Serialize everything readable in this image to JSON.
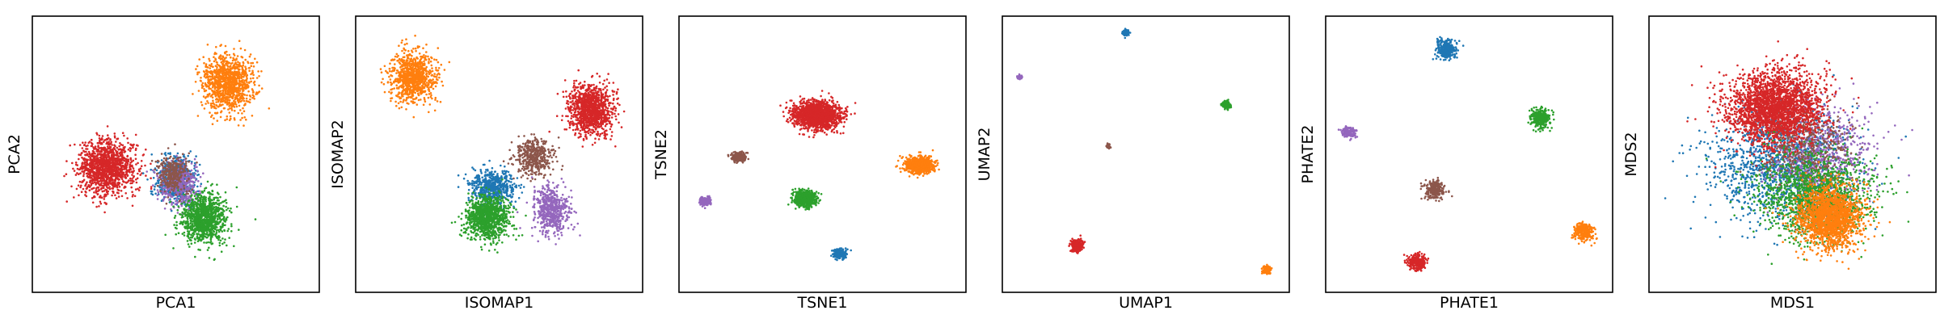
{
  "figure": {
    "colors": {
      "c0": "#1f77b4",
      "c1": "#ff7f0e",
      "c2": "#2ca02c",
      "c3": "#d62728",
      "c4": "#9467bd",
      "c5": "#8c564b"
    }
  },
  "chart_data": [
    {
      "type": "scatter",
      "xlabel": "PCA1",
      "ylabel": "PCA2",
      "xlim": [
        0,
        100
      ],
      "ylim": [
        0,
        100
      ],
      "grid": false,
      "legend": "none",
      "clusters": [
        {
          "color": "c3",
          "cx": 26,
          "cy": 45,
          "sx": 9,
          "sy": 9,
          "n": 1300
        },
        {
          "color": "c1",
          "cx": 68,
          "cy": 76,
          "sx": 8,
          "sy": 9,
          "n": 1100
        },
        {
          "color": "c0",
          "cx": 50,
          "cy": 41,
          "sx": 6,
          "sy": 7,
          "n": 600
        },
        {
          "color": "c4",
          "cx": 51,
          "cy": 39,
          "sx": 6,
          "sy": 7,
          "n": 450
        },
        {
          "color": "c5",
          "cx": 49,
          "cy": 43,
          "sx": 5,
          "sy": 6,
          "n": 300
        },
        {
          "color": "c2",
          "cx": 60,
          "cy": 27,
          "sx": 7,
          "sy": 8,
          "n": 1100
        }
      ]
    },
    {
      "type": "scatter",
      "xlabel": "ISOMAP1",
      "ylabel": "ISOMAP2",
      "xlim": [
        0,
        100
      ],
      "ylim": [
        0,
        100
      ],
      "grid": false,
      "legend": "none",
      "clusters": [
        {
          "color": "c1",
          "cx": 20,
          "cy": 78,
          "sx": 7,
          "sy": 8,
          "n": 900
        },
        {
          "color": "c3",
          "cx": 82,
          "cy": 66,
          "sx": 7,
          "sy": 8,
          "n": 1100
        },
        {
          "color": "c5",
          "cx": 62,
          "cy": 49,
          "sx": 6,
          "sy": 6,
          "n": 450
        },
        {
          "color": "c0",
          "cx": 48,
          "cy": 38,
          "sx": 7,
          "sy": 6,
          "n": 550
        },
        {
          "color": "c4",
          "cx": 68,
          "cy": 30,
          "sx": 6,
          "sy": 8,
          "n": 550
        },
        {
          "color": "c2",
          "cx": 46,
          "cy": 27,
          "sx": 7,
          "sy": 7,
          "n": 1000
        }
      ]
    },
    {
      "type": "scatter",
      "xlabel": "TSNE1",
      "ylabel": "TSNE2",
      "xlim": [
        0,
        100
      ],
      "ylim": [
        0,
        100
      ],
      "grid": false,
      "legend": "none",
      "clusters": [
        {
          "color": "c3",
          "cx": 48,
          "cy": 64,
          "sx": 7.5,
          "sy": 4.5,
          "n": 1500
        },
        {
          "color": "c1",
          "cx": 84,
          "cy": 46,
          "sx": 4.5,
          "sy": 2.6,
          "n": 800
        },
        {
          "color": "c5",
          "cx": 21,
          "cy": 49,
          "sx": 2.2,
          "sy": 1.5,
          "n": 300
        },
        {
          "color": "c2",
          "cx": 44,
          "cy": 34,
          "sx": 3.5,
          "sy": 2.5,
          "n": 600
        },
        {
          "color": "c4",
          "cx": 9,
          "cy": 33,
          "sx": 1.8,
          "sy": 1.3,
          "n": 200
        },
        {
          "color": "c0",
          "cx": 56,
          "cy": 14,
          "sx": 2,
          "sy": 1.5,
          "n": 220
        }
      ]
    },
    {
      "type": "scatter",
      "xlabel": "UMAP1",
      "ylabel": "UMAP2",
      "xlim": [
        0,
        100
      ],
      "ylim": [
        0,
        100
      ],
      "grid": false,
      "legend": "none",
      "clusters": [
        {
          "color": "c0",
          "cx": 43,
          "cy": 94,
          "sx": 0.9,
          "sy": 0.9,
          "n": 150
        },
        {
          "color": "c4",
          "cx": 6,
          "cy": 78,
          "sx": 0.7,
          "sy": 0.7,
          "n": 100
        },
        {
          "color": "c2",
          "cx": 78,
          "cy": 68,
          "sx": 1.2,
          "sy": 1.2,
          "n": 200
        },
        {
          "color": "c5",
          "cx": 37,
          "cy": 53,
          "sx": 0.6,
          "sy": 0.6,
          "n": 60
        },
        {
          "color": "c3",
          "cx": 26,
          "cy": 17,
          "sx": 1.8,
          "sy": 1.8,
          "n": 350
        },
        {
          "color": "c1",
          "cx": 92,
          "cy": 8,
          "sx": 1.2,
          "sy": 1.2,
          "n": 180
        }
      ]
    },
    {
      "type": "scatter",
      "xlabel": "PHATE1",
      "ylabel": "PHATE2",
      "xlim": [
        0,
        100
      ],
      "ylim": [
        0,
        100
      ],
      "grid": false,
      "legend": "none",
      "clusters": [
        {
          "color": "c0",
          "cx": 42,
          "cy": 88,
          "sx": 3,
          "sy": 3,
          "n": 300
        },
        {
          "color": "c2",
          "cx": 75,
          "cy": 63,
          "sx": 3,
          "sy": 3,
          "n": 300
        },
        {
          "color": "c4",
          "cx": 8,
          "cy": 58,
          "sx": 2.4,
          "sy": 2,
          "n": 150
        },
        {
          "color": "c5",
          "cx": 38,
          "cy": 37,
          "sx": 3,
          "sy": 3,
          "n": 250
        },
        {
          "color": "c1",
          "cx": 90,
          "cy": 22,
          "sx": 3,
          "sy": 3,
          "n": 300
        },
        {
          "color": "c3",
          "cx": 32,
          "cy": 11,
          "sx": 3,
          "sy": 2.5,
          "n": 300
        }
      ]
    },
    {
      "type": "scatter",
      "xlabel": "MDS1",
      "ylabel": "MDS2",
      "xlim": [
        0,
        100
      ],
      "ylim": [
        0,
        100
      ],
      "grid": false,
      "legend": "none",
      "clusters": [
        {
          "color": "c0",
          "cx": 45,
          "cy": 46,
          "sx": 22,
          "sy": 18,
          "n": 1300
        },
        {
          "color": "c4",
          "cx": 60,
          "cy": 50,
          "sx": 16,
          "sy": 16,
          "n": 700
        },
        {
          "color": "c5",
          "cx": 55,
          "cy": 52,
          "sx": 14,
          "sy": 14,
          "n": 500
        },
        {
          "color": "c3",
          "cx": 44,
          "cy": 67,
          "sx": 15,
          "sy": 12,
          "n": 2400
        },
        {
          "color": "c2",
          "cx": 58,
          "cy": 35,
          "sx": 18,
          "sy": 14,
          "n": 1400
        },
        {
          "color": "c1",
          "cx": 63,
          "cy": 27,
          "sx": 10,
          "sy": 10,
          "n": 1800
        }
      ]
    }
  ]
}
